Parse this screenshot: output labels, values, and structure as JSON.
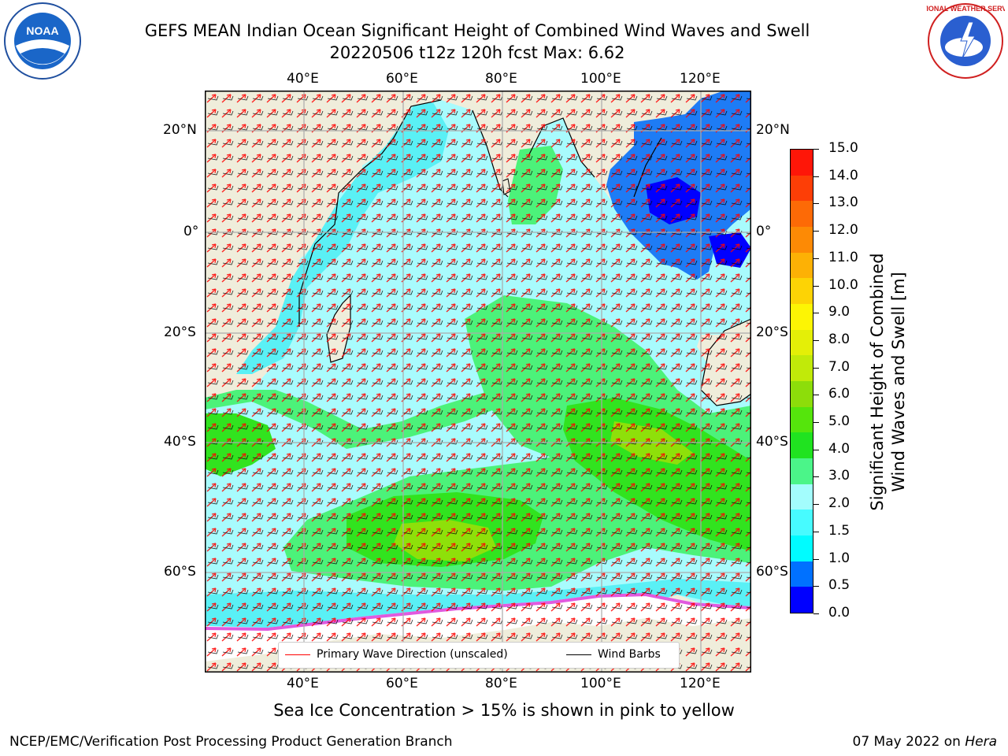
{
  "header": {
    "title_line1": "GEFS MEAN Indian Ocean Significant Height of Combined Wind Waves and Swell",
    "title_line2": "20220506 t12z 120h fcst   Max: 6.62"
  },
  "logos": {
    "left": "NOAA",
    "right": "NATIONAL WEATHER SERVICE"
  },
  "map": {
    "top_lon_ticks": [
      "40°E",
      "60°E",
      "80°E",
      "100°E",
      "120°E"
    ],
    "bottom_lon_ticks": [
      "40°E",
      "60°E",
      "80°E",
      "100°E",
      "120°E"
    ],
    "left_lat_ticks": [
      "20°N",
      "0°",
      "20°S",
      "40°S",
      "60°S"
    ],
    "right_lat_ticks": [
      "20°N",
      "0°",
      "20°S",
      "40°S",
      "60°S"
    ],
    "legend": {
      "wave_direction": "Primary Wave Direction (unscaled)",
      "wind_barbs": "Wind Barbs"
    },
    "colors": {
      "land": "#efeddb",
      "ocean_low": "#5af0f5",
      "ocean_2_3": "#a8fbfd",
      "band_3_4": "#4cf27a",
      "band_4_5": "#31e31f",
      "band_5_6": "#8ee00a",
      "shallow": "#1e7cf5",
      "deep_blue": "#0000ff",
      "ice": "#ffffff",
      "ice_edge": "#e05adf",
      "wave_arrow": "#ff0000",
      "barb": "#000000"
    }
  },
  "colorbar": {
    "ticks": [
      "15.0",
      "14.0",
      "13.0",
      "12.0",
      "11.0",
      "10.0",
      "9.0",
      "8.0",
      "7.0",
      "6.0",
      "5.0",
      "4.0",
      "3.0",
      "2.0",
      "1.5",
      "1.0",
      "0.5",
      "0.0"
    ],
    "label_line1": "Significant Height of Combined",
    "label_line2": "Wind Waves and Swell [m]",
    "colors": [
      "#0000ff",
      "#0071ff",
      "#00fcff",
      "#47fbff",
      "#a3fdfd",
      "#4bf589",
      "#20e320",
      "#55e50c",
      "#8ddd0a",
      "#c1ea09",
      "#e4ef07",
      "#fdf504",
      "#fdd305",
      "#fdb105",
      "#fd8a05",
      "#fd6a06",
      "#fd3e06",
      "#fe1608"
    ]
  },
  "caption": "Sea Ice Concentration > 15% is shown in pink to yellow",
  "footer": {
    "left": "NCEP/EMC/Verification Post Processing Product Generation Branch",
    "right_prefix": "07 May 2022 on ",
    "right_host": "Hera"
  }
}
